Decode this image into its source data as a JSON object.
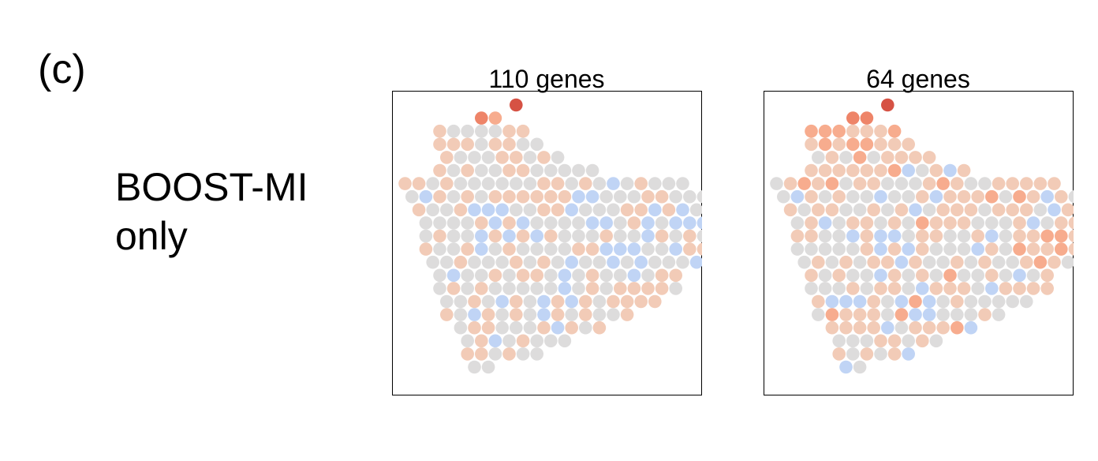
{
  "figure": {
    "panel_label": "(c)",
    "row_label_line1": "BOOST-MI",
    "row_label_line2": "only"
  },
  "colors": {
    "palette": [
      "#3b4cc0",
      "#5977e3",
      "#7b9ff9",
      "#9ebeff",
      "#c0d4f5",
      "#dddcdc",
      "#f2cbb7",
      "#f7ac8e",
      "#ee8468",
      "#d65244",
      "#b40426"
    ],
    "frame": "#000000"
  },
  "chart_data": [
    {
      "type": "scatter",
      "title": "110 genes",
      "xlabel": "",
      "ylabel": "",
      "colormap": "coolwarm",
      "value_scale": "-5 (blue) .. 0 (grey) .. +5 (red)",
      "row_min_col": [
        16,
        11,
        5,
        5,
        6,
        5,
        0,
        1,
        2,
        3,
        3,
        3,
        4,
        5,
        5,
        6,
        6,
        8,
        9,
        9,
        10
      ],
      "grid": [
        "--------------------------------------------------------------------------------",
        "---------------------2",
        "---------------------1-1",
        "-----0-0-1-1-2-1-2-1",
        "-----4-1-1-1-1-0-0-2-0-1-1",
        "------4-1-1-1-1-1-0-2-1-2-1",
        "-----0-1-1-1-0-1-1-0-0-0-1-1",
        "--------1-2-0-1-0-1-0-5-1-3-2-1-1",
        "---------------------3-1-2-1-1-2-2-2-3-5-6-2-3-2-3-2-1-0-2",
        "---------------------4-3-0-0-0-1-1-2-1-1-3-1-1-1-0-1-0-1-0-1-3",
        "---------------------0-3-1-0-1-1-1-1-2-3-5-2-2-4-1-1-1-3-2-1-4-3-4-1-3-1-3-1-2-3",
        "---------------------3-3-4-3-5-6-3-1-0-0-4-1-2-1-1-2-1-3-1-3-1-1-1-2-4-2-4-4-5-3-1",
        "---------------------5-1-3-2-0-1-2-1-2-1-2-3-1-1-1-2-2-5-4-3-2-1-1-2-1-3-5-3-1",
        "---------------------3-2-4-2-5-1-2-2-1-1-1-2-4-0-2-2-1-3-5-3-2",
        "---------------------3-1-2-2-4-3-4-2-3-2-2-4-2-3-4-3-0-3",
        "---------------------1-2-2-1-1-1-2-3-1-4-4-1-3-3-1-1",
        "---------------------1-2-1-3-1-1-2-1-1-2-3-1-2-2-1",
        "---------------------0-1-3-3-2-1-3-3-4-3-1-1",
        "---------------------1-1-1-2-1-2-2-3-1",
        "---------------------1-2-1-1-4",
        "---------------------2"
      ],
      "n_points": 364,
      "values": [
        4,
        3,
        2,
        1,
        0,
        0,
        0,
        0,
        1,
        1,
        1,
        1,
        1,
        0,
        1,
        1,
        0,
        0,
        1,
        0,
        0,
        0,
        1,
        1,
        0,
        1,
        0,
        1,
        0,
        1,
        0,
        0,
        1,
        1,
        0,
        0,
        0,
        0,
        0,
        1,
        1,
        0,
        1,
        0,
        0,
        0,
        0,
        0,
        0,
        1,
        1,
        0,
        1,
        0,
        -1,
        0,
        1,
        0,
        0,
        0,
        0,
        -1,
        1,
        0,
        1,
        0,
        1,
        1,
        1,
        1,
        1,
        1,
        -1,
        -1,
        0,
        0,
        0,
        1,
        1,
        0,
        0,
        0,
        1,
        0,
        0,
        1,
        -1,
        -1,
        -1,
        0,
        0,
        1,
        1,
        -1,
        0,
        0,
        0,
        1,
        1,
        -1,
        1,
        -1,
        0,
        0,
        1,
        0,
        0,
        0,
        0,
        1,
        -1,
        1,
        -1,
        0,
        0,
        0,
        0,
        -1,
        -1,
        0,
        1,
        -1,
        0,
        -1,
        -1,
        -1,
        0,
        0,
        0,
        1,
        0,
        0,
        -1,
        1,
        -1,
        1,
        -1,
        1,
        0,
        0,
        0,
        1,
        0,
        0,
        -1,
        1,
        0,
        1,
        0,
        1,
        0,
        1,
        0,
        0,
        1,
        -1,
        0,
        1,
        0,
        0,
        0,
        0,
        1,
        1,
        -1,
        -1,
        -1,
        0,
        0,
        -1,
        1,
        1,
        0,
        0,
        0,
        1,
        0,
        0,
        0,
        1,
        0,
        1,
        0,
        -1,
        0,
        0,
        -1,
        0,
        -1,
        0,
        0,
        0,
        -1,
        0,
        0,
        0,
        -1,
        0,
        0,
        1,
        0,
        1,
        1,
        0,
        -1,
        0,
        1,
        0,
        0,
        -1,
        0,
        1,
        1,
        0,
        1,
        0,
        1,
        0,
        0,
        0,
        0,
        0,
        -1,
        0,
        1,
        0,
        1,
        1,
        1,
        1,
        0,
        0,
        0,
        1,
        0,
        -1,
        1,
        0,
        -1,
        1,
        -1,
        1,
        0,
        1,
        1,
        1,
        1,
        1,
        0,
        -1,
        1,
        0,
        1,
        0,
        -1,
        1,
        0,
        1,
        0,
        0,
        1,
        0,
        1,
        1,
        0,
        0,
        0,
        1,
        -1,
        1,
        0,
        1,
        0,
        1,
        -1,
        0,
        1,
        0,
        0,
        0,
        1,
        1,
        0,
        1,
        0,
        0,
        0,
        0,
        -1,
        0,
        -1,
        0,
        0,
        -1,
        0,
        0,
        0,
        -1,
        0,
        0,
        0,
        0,
        1,
        1,
        1,
        1,
        0,
        1,
        1,
        -1,
        0,
        -1,
        0,
        0,
        1,
        1,
        -1,
        -1,
        0,
        0,
        0,
        1,
        1,
        1,
        0,
        0,
        -1,
        1,
        1,
        -1,
        0,
        1,
        0,
        0,
        0,
        1,
        0,
        0,
        1,
        1,
        0,
        -1,
        -1,
        -1,
        0,
        -1,
        -1,
        1,
        0,
        0,
        1,
        0,
        0,
        0,
        -1,
        1,
        -1,
        0,
        -1,
        0,
        0,
        0,
        -1,
        1,
        1,
        1
      ]
    },
    {
      "type": "scatter",
      "title": "64 genes",
      "xlabel": "",
      "ylabel": "",
      "colormap": "coolwarm",
      "value_scale": "-5 (blue) .. 0 (grey) .. +5 (red)",
      "row_min_col": [
        16,
        11,
        5,
        5,
        6,
        5,
        0,
        1,
        2,
        3,
        3,
        3,
        4,
        5,
        5,
        6,
        6,
        8,
        9,
        9,
        10
      ],
      "n_points": 364,
      "values": [
        4,
        3,
        3,
        2,
        2,
        2,
        1,
        1,
        1,
        2,
        1,
        2,
        1,
        2,
        2,
        1,
        1,
        1,
        0,
        1,
        0,
        2,
        0,
        1,
        1,
        1,
        1,
        1,
        1,
        1,
        1,
        1,
        1,
        2,
        -1,
        0,
        1,
        -1,
        1,
        0,
        1,
        2,
        1,
        2,
        0,
        1,
        1,
        0,
        0,
        0,
        1,
        2,
        1,
        0,
        0,
        1,
        1,
        1,
        1,
        1,
        0,
        -1,
        1,
        0,
        1,
        0,
        0,
        -1,
        0,
        0,
        1,
        -1,
        1,
        1,
        1,
        2,
        0,
        2,
        1,
        -1,
        1,
        0,
        1,
        0,
        1,
        1,
        0,
        0,
        1,
        0,
        1,
        -1,
        0,
        1,
        1,
        1,
        0,
        1,
        1,
        1,
        0,
        -1,
        1,
        1,
        0,
        0,
        1,
        -1,
        0,
        1,
        1,
        0,
        1,
        0,
        2,
        1,
        1,
        1,
        0,
        0,
        0,
        1,
        -1,
        0,
        1,
        1,
        1,
        0,
        1,
        1,
        0,
        0,
        -1,
        1,
        -1,
        -1,
        0,
        1,
        1,
        0,
        0,
        1,
        -1,
        0,
        1,
        1,
        2,
        2,
        1,
        1,
        0,
        0,
        0,
        0,
        0,
        0,
        1,
        -1,
        1,
        -1,
        1,
        0,
        0,
        0,
        -1,
        1,
        0,
        2,
        1,
        1,
        2,
        1,
        0,
        0,
        1,
        0,
        1,
        0,
        1,
        1,
        -1,
        1,
        0,
        0,
        1,
        0,
        1,
        0,
        0,
        1,
        2,
        1,
        0,
        -1,
        0,
        1,
        0,
        1,
        0,
        0,
        -1,
        1,
        0,
        1,
        0,
        2,
        0,
        0,
        1,
        0,
        -1,
        0,
        1,
        0,
        0,
        0,
        1,
        0,
        1,
        1,
        0,
        -1,
        1,
        1,
        1,
        0,
        -1,
        1,
        1,
        1,
        1,
        1,
        -1,
        -1,
        -1,
        1,
        0,
        -1,
        2,
        -1,
        0,
        1,
        0,
        0,
        0,
        0,
        0,
        0,
        2,
        1,
        1,
        1,
        0,
        2,
        -1,
        -1,
        0,
        0,
        0,
        1,
        0,
        1,
        1,
        1,
        1,
        -1,
        0,
        1,
        1,
        1,
        2,
        -1,
        0,
        0,
        0,
        1,
        1,
        0,
        1,
        0,
        1,
        0,
        1,
        0,
        1,
        -1,
        -1,
        0,
        -1,
        0,
        1,
        1,
        1,
        0,
        0,
        1,
        1,
        1,
        0,
        1,
        0,
        -1,
        0,
        0,
        1,
        0,
        1,
        0,
        0,
        0,
        1,
        1,
        0,
        -1,
        1,
        0,
        0,
        1,
        0,
        0,
        -1,
        0,
        0,
        1,
        1,
        0,
        1,
        1,
        0,
        -1,
        1,
        1,
        1,
        1,
        0,
        -1,
        0,
        1,
        1,
        1,
        1,
        1,
        0,
        0,
        1,
        0,
        1,
        1,
        1,
        1,
        0,
        0,
        0,
        0,
        0,
        1,
        0,
        1,
        -1,
        0,
        -1,
        1,
        0,
        0,
        1,
        0,
        0,
        1,
        1,
        1,
        0,
        0,
        -1
      ]
    }
  ]
}
